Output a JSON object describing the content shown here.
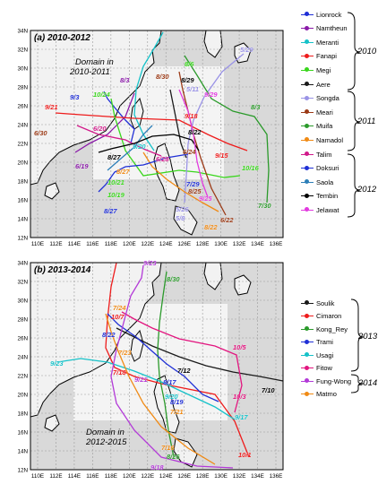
{
  "panel_a": {
    "label": "(a) 2010-2012",
    "domain_note": [
      "Domain in",
      "2010-2011"
    ],
    "lon_ticks": [
      "110E",
      "112E",
      "114E",
      "116E",
      "118E",
      "120E",
      "122E",
      "124E",
      "126E",
      "128E",
      "130E",
      "132E",
      "134E",
      "136E"
    ],
    "lat_ticks": [
      "12N",
      "14N",
      "16N",
      "18N",
      "20N",
      "22N",
      "24N",
      "26N",
      "28N",
      "30N",
      "32N",
      "34N"
    ],
    "legend": [
      {
        "name": "Lionrock",
        "color": "#1f2fd6"
      },
      {
        "name": "Namtheun",
        "color": "#8a1aa8"
      },
      {
        "name": "Meranti",
        "color": "#16c2c9"
      },
      {
        "name": "Fanapi",
        "color": "#ee1c1c"
      },
      {
        "name": "Megi",
        "color": "#39d61c"
      },
      {
        "name": "Aere",
        "color": "#1a1a1a"
      },
      {
        "name": "Songda",
        "color": "#9a93e6"
      },
      {
        "name": "Meari",
        "color": "#9b3a16"
      },
      {
        "name": "Muifa",
        "color": "#2b9a2b"
      },
      {
        "name": "Namadol",
        "color": "#f08a14"
      },
      {
        "name": "Talim",
        "color": "#d11a8a"
      },
      {
        "name": "Doksuri",
        "color": "#1f2fd6"
      },
      {
        "name": "Saola",
        "color": "#2d7fb8"
      },
      {
        "name": "Tembin",
        "color": "#000000"
      },
      {
        "name": "Jelawat",
        "color": "#e23adf"
      }
    ],
    "year_labels": [
      "2010",
      "2011",
      "2012"
    ],
    "date_labels": [
      {
        "text": "9/3",
        "color": "#1f2fd6"
      },
      {
        "text": "9/21",
        "color": "#ee1c1c"
      },
      {
        "text": "10/24",
        "color": "#39d61c"
      },
      {
        "text": "6/30",
        "color": "#9b3a16"
      },
      {
        "text": "6/20",
        "color": "#d11a8a"
      },
      {
        "text": "6/19",
        "color": "#8a1aa8"
      },
      {
        "text": "8/27",
        "color": "#000000"
      },
      {
        "text": "8/27",
        "color": "#f08a14"
      },
      {
        "text": "10/21",
        "color": "#39d61c"
      },
      {
        "text": "10/19",
        "color": "#39d61c"
      },
      {
        "text": "8/27",
        "color": "#1f2fd6"
      },
      {
        "text": "8/3",
        "color": "#8a1aa8"
      },
      {
        "text": "8/30",
        "color": "#9b3a16"
      },
      {
        "text": "8/29",
        "color": "#000000"
      },
      {
        "text": "8/6",
        "color": "#39d61c"
      },
      {
        "text": "5/11",
        "color": "#9a93e6"
      },
      {
        "text": "9/29",
        "color": "#e23adf"
      },
      {
        "text": "5/29",
        "color": "#9a93e6"
      },
      {
        "text": "8/3",
        "color": "#2b9a2b"
      },
      {
        "text": "9/18",
        "color": "#ee1c1c"
      },
      {
        "text": "8/22",
        "color": "#000000"
      },
      {
        "text": "6/28",
        "color": "#d11a8a"
      },
      {
        "text": "6/24",
        "color": "#9b3a16"
      },
      {
        "text": "9/15",
        "color": "#ee1c1c"
      },
      {
        "text": "7/29",
        "color": "#1f2fd6"
      },
      {
        "text": "8/25",
        "color": "#9b3a16"
      },
      {
        "text": "9/25",
        "color": "#e23adf"
      },
      {
        "text": "10/16",
        "color": "#39d61c"
      },
      {
        "text": "7/30",
        "color": "#2b9a2b"
      },
      {
        "text": "5/26",
        "color": "#9a93e6"
      },
      {
        "text": "5/8",
        "color": "#9a93e6"
      },
      {
        "text": "6/22",
        "color": "#9b3a16"
      },
      {
        "text": "8/22",
        "color": "#f08a14"
      },
      {
        "text": "9/20",
        "color": "#16c2c9"
      }
    ]
  },
  "panel_b": {
    "label": "(b) 2013-2014",
    "domain_note": [
      "Domain in",
      "2012-2015"
    ],
    "lon_ticks": [
      "110E",
      "112E",
      "114E",
      "116E",
      "118E",
      "120E",
      "122E",
      "124E",
      "126E",
      "128E",
      "130E",
      "132E",
      "134E",
      "136E"
    ],
    "lat_ticks": [
      "12N",
      "14N",
      "16N",
      "18N",
      "20N",
      "22N",
      "24N",
      "26N",
      "28N",
      "30N",
      "32N",
      "34N"
    ],
    "legend": [
      {
        "name": "Soulik",
        "color": "#1a1a1a"
      },
      {
        "name": "Cimaron",
        "color": "#ee1c1c"
      },
      {
        "name": "Kong_Rey",
        "color": "#2b9a2b"
      },
      {
        "name": "Trami",
        "color": "#1f2fd6"
      },
      {
        "name": "Usagi",
        "color": "#16c2c9"
      },
      {
        "name": "Fitow",
        "color": "#e2157f"
      },
      {
        "name": "Fung-Wong",
        "color": "#b33ad8"
      },
      {
        "name": "Matmo",
        "color": "#f08a14"
      }
    ],
    "year_labels": [
      "2013",
      "2014"
    ],
    "date_labels": [
      {
        "text": "9/23",
        "color": "#b33ad8"
      },
      {
        "text": "8/30",
        "color": "#2b9a2b"
      },
      {
        "text": "7/24",
        "color": "#f08a14"
      },
      {
        "text": "10/7",
        "color": "#ee1c1c"
      },
      {
        "text": "8/22",
        "color": "#1f2fd6"
      },
      {
        "text": "9/23",
        "color": "#16c2c9"
      },
      {
        "text": "7/23",
        "color": "#f08a14"
      },
      {
        "text": "7/18",
        "color": "#ee1c1c"
      },
      {
        "text": "9/21",
        "color": "#b33ad8"
      },
      {
        "text": "7/12",
        "color": "#000000"
      },
      {
        "text": "8/17",
        "color": "#1f2fd6"
      },
      {
        "text": "8/19",
        "color": "#1f2fd6"
      },
      {
        "text": "10/5",
        "color": "#e2157f"
      },
      {
        "text": "10/3",
        "color": "#e2157f"
      },
      {
        "text": "7/10",
        "color": "#000000"
      },
      {
        "text": "9/20",
        "color": "#16c2c9"
      },
      {
        "text": "9/17",
        "color": "#16c2c9"
      },
      {
        "text": "7/21",
        "color": "#f08a14"
      },
      {
        "text": "7/16",
        "color": "#f08a14"
      },
      {
        "text": "8/26",
        "color": "#2b9a2b"
      },
      {
        "text": "9/18",
        "color": "#b33ad8"
      },
      {
        "text": "10/1",
        "color": "#ee1c1c"
      }
    ]
  }
}
